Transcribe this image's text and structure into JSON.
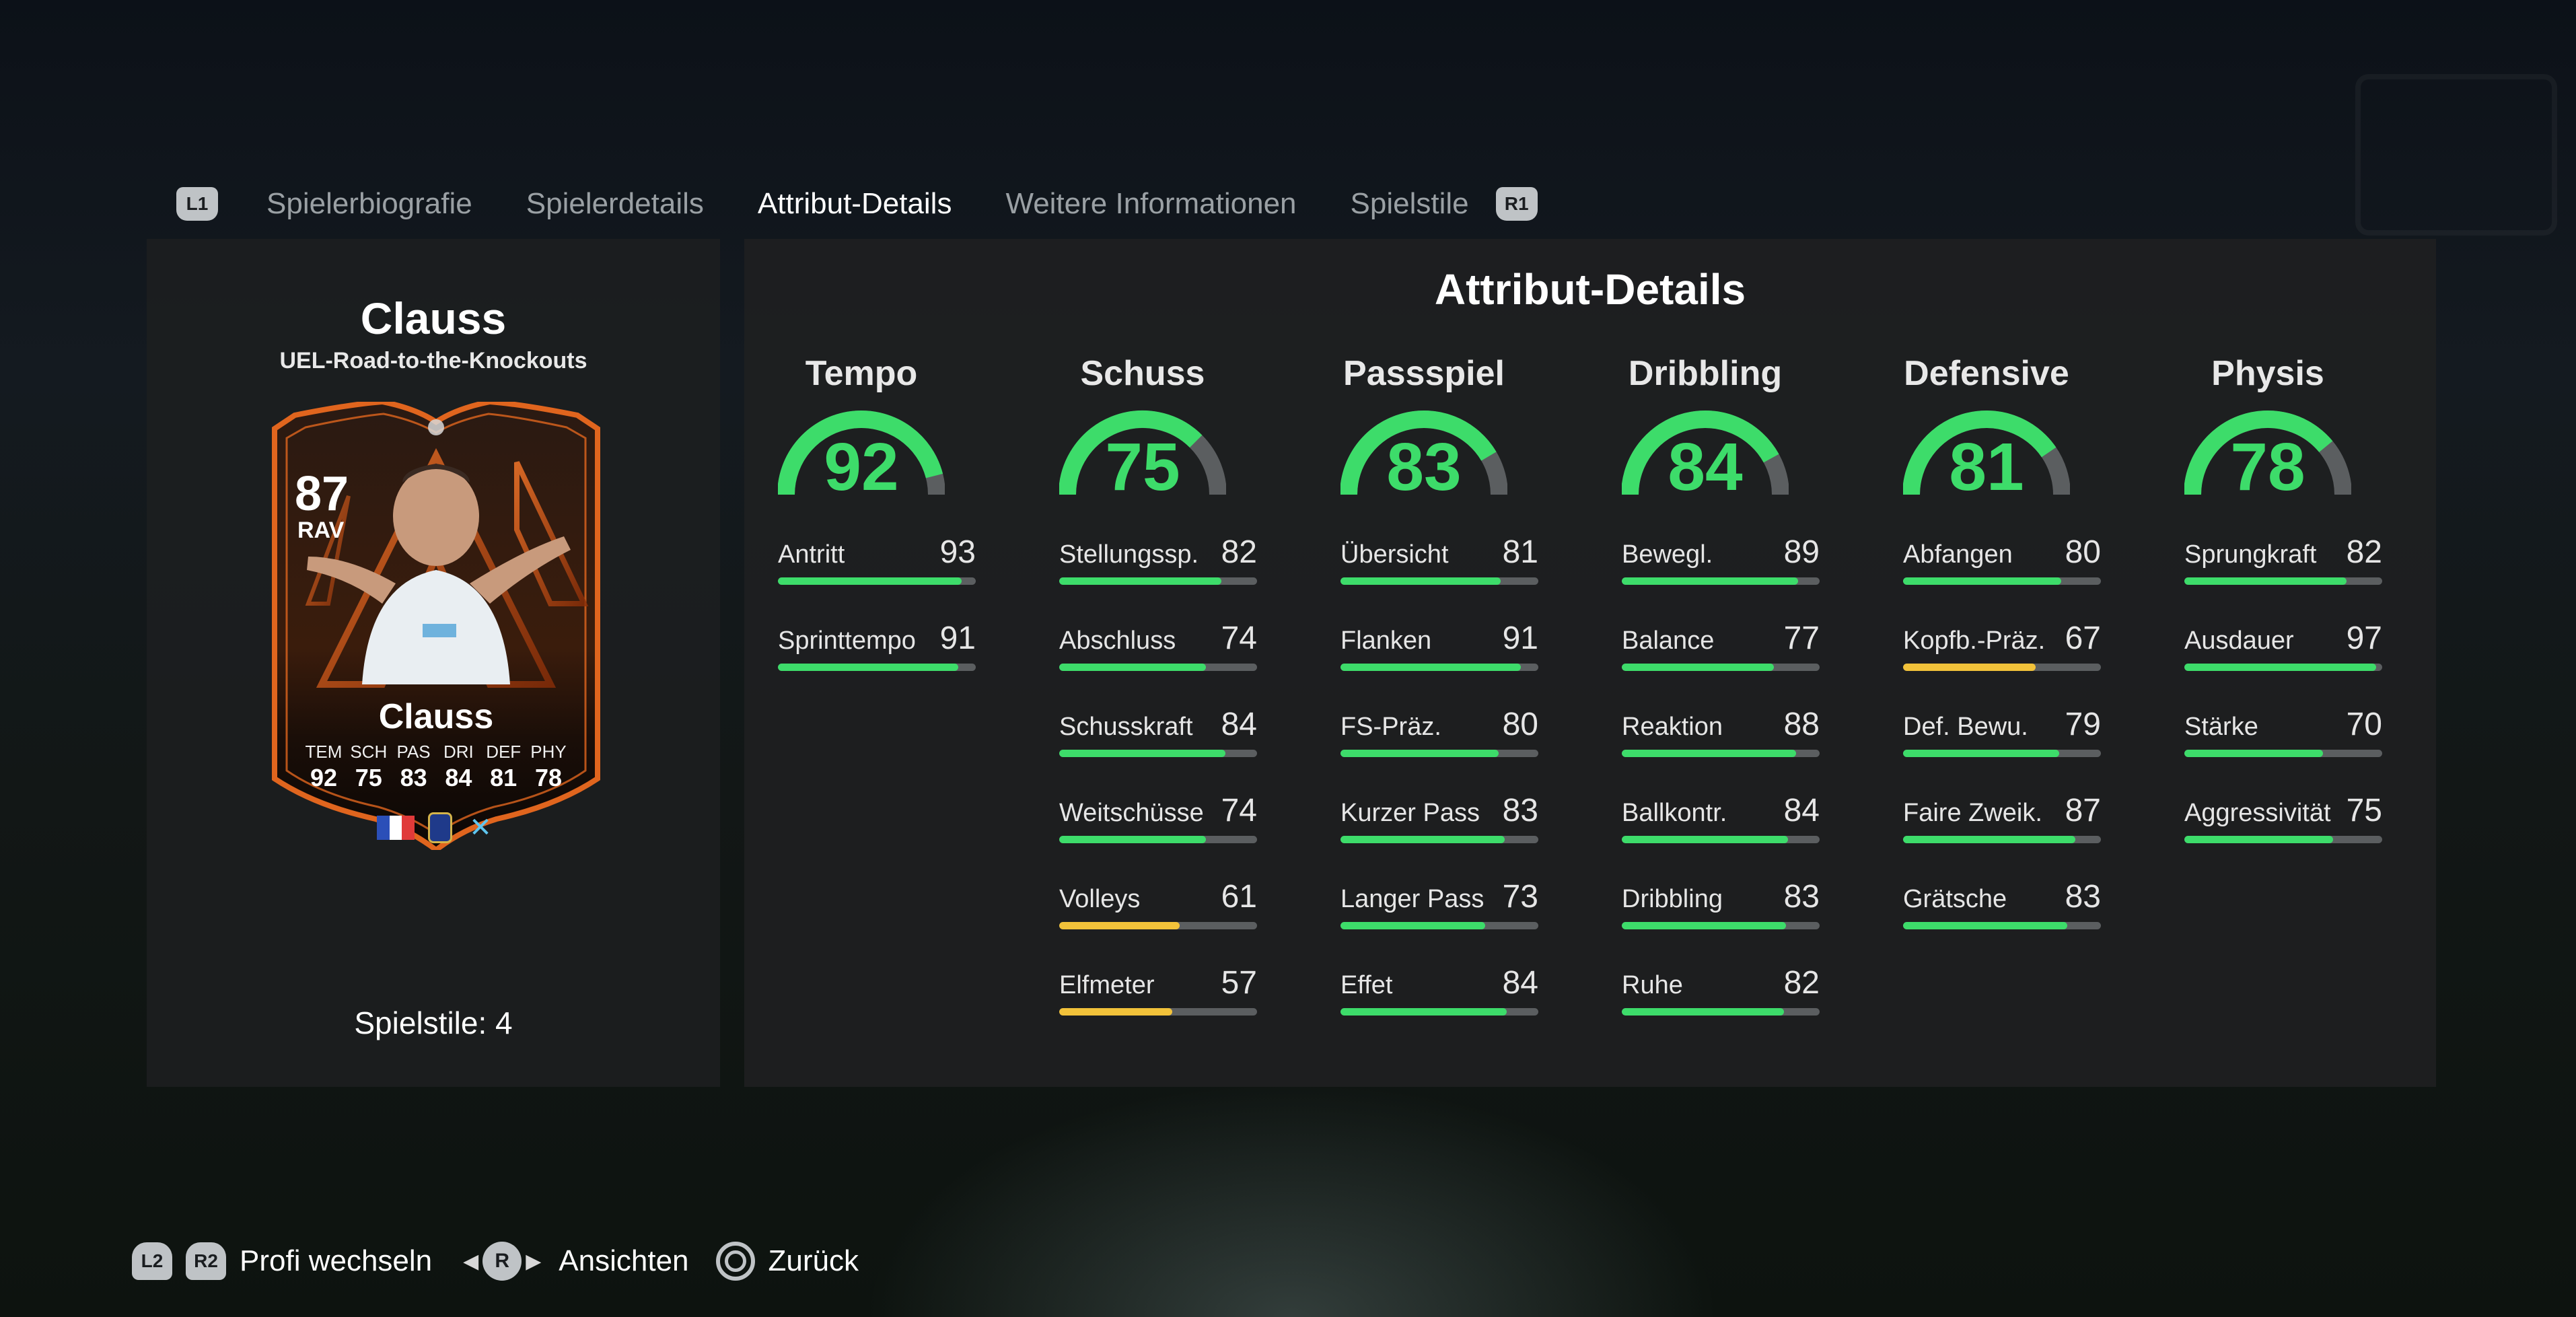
{
  "colors": {
    "green": "#3ddc6a",
    "yellow": "#f2c23a",
    "track": "#5b5e60",
    "card_orange": "#e0651e"
  },
  "tabs": {
    "left_shoulder": "L1",
    "right_shoulder": "R1",
    "items": [
      {
        "label": "Spielerbiografie",
        "active": false
      },
      {
        "label": "Spielerdetails",
        "active": false
      },
      {
        "label": "Attribut-Details",
        "active": true
      },
      {
        "label": "Weitere Informationen",
        "active": false
      },
      {
        "label": "Spielstile",
        "active": false
      }
    ]
  },
  "player": {
    "name": "Clauss",
    "version": "UEL-Road-to-the-Knockouts",
    "playstyles": "Spielstile: 4",
    "card": {
      "rating": "87",
      "position": "RAV",
      "name": "Clauss",
      "stats": [
        {
          "label": "TEM",
          "value": "92"
        },
        {
          "label": "SCH",
          "value": "75"
        },
        {
          "label": "PAS",
          "value": "83"
        },
        {
          "label": "DRI",
          "value": "84"
        },
        {
          "label": "DEF",
          "value": "81"
        },
        {
          "label": "PHY",
          "value": "78"
        }
      ],
      "nation_icon": "france-flag-icon",
      "league_icon": "ligue1-badge-icon",
      "club_icon": "marseille-badge-icon"
    }
  },
  "attributes": {
    "title": "Attribut-Details",
    "categories": [
      {
        "name": "Tempo",
        "value": 92,
        "items": [
          {
            "label": "Antritt",
            "value": 93
          },
          {
            "label": "Sprinttempo",
            "value": 91
          }
        ]
      },
      {
        "name": "Schuss",
        "value": 75,
        "items": [
          {
            "label": "Stellungssp.",
            "value": 82
          },
          {
            "label": "Abschluss",
            "value": 74
          },
          {
            "label": "Schusskraft",
            "value": 84
          },
          {
            "label": "Weitschüsse",
            "value": 74
          },
          {
            "label": "Volleys",
            "value": 61
          },
          {
            "label": "Elfmeter",
            "value": 57
          }
        ]
      },
      {
        "name": "Passspiel",
        "value": 83,
        "items": [
          {
            "label": "Übersicht",
            "value": 81
          },
          {
            "label": "Flanken",
            "value": 91
          },
          {
            "label": "FS-Präz.",
            "value": 80
          },
          {
            "label": "Kurzer Pass",
            "value": 83
          },
          {
            "label": "Langer Pass",
            "value": 73
          },
          {
            "label": "Effet",
            "value": 84
          }
        ]
      },
      {
        "name": "Dribbling",
        "value": 84,
        "items": [
          {
            "label": "Bewegl.",
            "value": 89
          },
          {
            "label": "Balance",
            "value": 77
          },
          {
            "label": "Reaktion",
            "value": 88
          },
          {
            "label": "Ballkontr.",
            "value": 84
          },
          {
            "label": "Dribbling",
            "value": 83
          },
          {
            "label": "Ruhe",
            "value": 82
          }
        ]
      },
      {
        "name": "Defensive",
        "value": 81,
        "items": [
          {
            "label": "Abfangen",
            "value": 80
          },
          {
            "label": "Kopfb.-Präz.",
            "value": 67
          },
          {
            "label": "Def. Bewu.",
            "value": 79
          },
          {
            "label": "Faire Zweik.",
            "value": 87
          },
          {
            "label": "Grätsche",
            "value": 83
          }
        ]
      },
      {
        "name": "Physis",
        "value": 78,
        "items": [
          {
            "label": "Sprungkraft",
            "value": 82
          },
          {
            "label": "Ausdauer",
            "value": 97
          },
          {
            "label": "Stärke",
            "value": 70
          },
          {
            "label": "Aggressivität",
            "value": 75
          }
        ]
      }
    ]
  },
  "controls": {
    "l2": "L2",
    "r2": "R2",
    "switch_label": "Profi wechseln",
    "stick": "R",
    "views_label": "Ansichten",
    "back_label": "Zurück"
  }
}
